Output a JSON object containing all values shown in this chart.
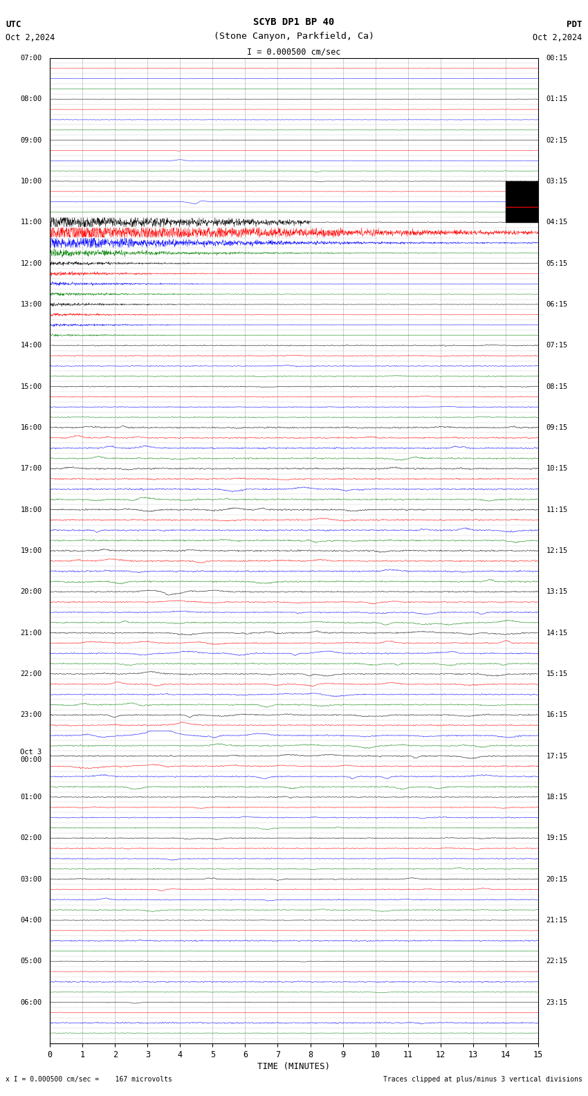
{
  "title_line1": "SCYB DP1 BP 40",
  "title_line2": "(Stone Canyon, Parkfield, Ca)",
  "scale_text": "I = 0.000500 cm/sec",
  "utc_label": "UTC",
  "pdt_label": "PDT",
  "date_left": "Oct 2,2024",
  "date_right": "Oct 2,2024",
  "bottom_left": "x I = 0.000500 cm/sec =    167 microvolts",
  "bottom_right": "Traces clipped at plus/minus 3 vertical divisions",
  "xlabel": "TIME (MINUTES)",
  "colors": [
    "black",
    "red",
    "blue",
    "green"
  ],
  "xlim": [
    0,
    15
  ],
  "xticks": [
    0,
    1,
    2,
    3,
    4,
    5,
    6,
    7,
    8,
    9,
    10,
    11,
    12,
    13,
    14,
    15
  ],
  "background_color": "white",
  "grid_color": "#888888",
  "noise_seed": 12345,
  "left_labels": [
    [
      "07:00",
      0
    ],
    [
      "08:00",
      4
    ],
    [
      "09:00",
      8
    ],
    [
      "10:00",
      12
    ],
    [
      "11:00",
      16
    ],
    [
      "12:00",
      20
    ],
    [
      "13:00",
      24
    ],
    [
      "14:00",
      28
    ],
    [
      "15:00",
      32
    ],
    [
      "16:00",
      36
    ],
    [
      "17:00",
      40
    ],
    [
      "18:00",
      44
    ],
    [
      "19:00",
      48
    ],
    [
      "20:00",
      52
    ],
    [
      "21:00",
      56
    ],
    [
      "22:00",
      60
    ],
    [
      "23:00",
      64
    ],
    [
      "Oct 3\n00:00",
      68
    ],
    [
      "01:00",
      72
    ],
    [
      "02:00",
      76
    ],
    [
      "03:00",
      80
    ],
    [
      "04:00",
      84
    ],
    [
      "05:00",
      88
    ],
    [
      "06:00",
      92
    ]
  ],
  "right_labels": [
    [
      "00:15",
      0
    ],
    [
      "01:15",
      4
    ],
    [
      "02:15",
      8
    ],
    [
      "03:15",
      12
    ],
    [
      "04:15",
      16
    ],
    [
      "05:15",
      20
    ],
    [
      "06:15",
      24
    ],
    [
      "07:15",
      28
    ],
    [
      "08:15",
      32
    ],
    [
      "09:15",
      36
    ],
    [
      "10:15",
      40
    ],
    [
      "11:15",
      44
    ],
    [
      "12:15",
      48
    ],
    [
      "13:15",
      52
    ],
    [
      "14:15",
      56
    ],
    [
      "15:15",
      60
    ],
    [
      "16:15",
      64
    ],
    [
      "17:15",
      68
    ],
    [
      "18:15",
      72
    ],
    [
      "19:15",
      76
    ],
    [
      "20:15",
      80
    ],
    [
      "21:15",
      84
    ],
    [
      "22:15",
      88
    ],
    [
      "23:15",
      92
    ]
  ]
}
